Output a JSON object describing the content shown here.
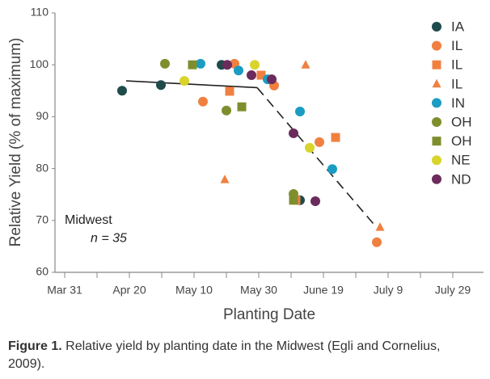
{
  "chart_data": {
    "type": "scatter",
    "xlabel": "Planting Date",
    "ylabel": "Relative Yield (% of maximum)",
    "xlim": [
      87,
      219.5
    ],
    "ylim": [
      60,
      110
    ],
    "xticks": [
      {
        "value": 90,
        "label": "Mar 31"
      },
      {
        "value": 110,
        "label": "Apr 20"
      },
      {
        "value": 130,
        "label": "May 10"
      },
      {
        "value": 150,
        "label": "May 30"
      },
      {
        "value": 170,
        "label": "June 19"
      },
      {
        "value": 190,
        "label": "July 9"
      },
      {
        "value": 210,
        "label": "July 29"
      }
    ],
    "xminorticks": [
      100,
      120,
      140,
      160,
      180,
      200
    ],
    "yticks": [
      60,
      70,
      80,
      90,
      100,
      110
    ],
    "grid": false,
    "legend": "top-right",
    "series": [
      {
        "name": "IA",
        "color": "#1f4b4c",
        "marker": "circle",
        "x": [
          107.75,
          119.75,
          138.5,
          162.75
        ],
        "values": [
          95.0,
          96.1,
          100.0,
          73.9
        ]
      },
      {
        "name": "IL",
        "color": "#f08040",
        "marker": "circle",
        "x": [
          132.75,
          142.5,
          154.75,
          168.75,
          186.5
        ],
        "values": [
          92.9,
          100.2,
          96.0,
          85.1,
          65.8
        ]
      },
      {
        "name": "IL",
        "color": "#f08040",
        "marker": "square",
        "x": [
          141,
          150.75,
          173.75,
          161.5
        ],
        "values": [
          94.9,
          98.0,
          86.0,
          73.9
        ]
      },
      {
        "name": "IL",
        "color": "#f08040",
        "marker": "triangle",
        "x": [
          164.5,
          139.5,
          187.5
        ],
        "values": [
          100.0,
          77.9,
          68.7
        ]
      },
      {
        "name": "IN",
        "color": "#1b9cc2",
        "marker": "circle",
        "x": [
          132,
          143.75,
          152.75,
          162.75,
          172.75
        ],
        "values": [
          100.2,
          98.9,
          97.2,
          91.0,
          79.9
        ]
      },
      {
        "name": "OH",
        "color": "#7f8e2d",
        "marker": "circle",
        "x": [
          121,
          140,
          160.75
        ],
        "values": [
          100.2,
          91.2,
          75.1
        ]
      },
      {
        "name": "OH",
        "color": "#7f8e2d",
        "marker": "square",
        "x": [
          129.5,
          144.75,
          160.75
        ],
        "values": [
          100.0,
          91.9,
          73.9
        ]
      },
      {
        "name": "NE",
        "color": "#d8d42c",
        "marker": "circle",
        "x": [
          127,
          148.75,
          165.75
        ],
        "values": [
          96.9,
          100.0,
          84.0
        ]
      },
      {
        "name": "ND",
        "color": "#6b2b5c",
        "marker": "circle",
        "x": [
          140.25,
          147.75,
          154,
          160.75,
          167.5
        ],
        "values": [
          100.0,
          98.0,
          97.2,
          86.8,
          73.7
        ]
      }
    ],
    "trend": {
      "color": "#222222",
      "x": [
        109,
        149.5,
        186.5
      ],
      "values": [
        96.9,
        95.6,
        68.6
      ]
    },
    "annotations": [
      {
        "text": "Midwest",
        "x": 90,
        "y": 70,
        "style": "normal"
      },
      {
        "text": "n = 35",
        "x": 98,
        "y": 66.5,
        "style": "italic"
      }
    ],
    "caption": {
      "label": "Figure 1.",
      "text": "Relative yield by planting date in the Midwest (Egli and Cornelius, 2009)."
    }
  }
}
